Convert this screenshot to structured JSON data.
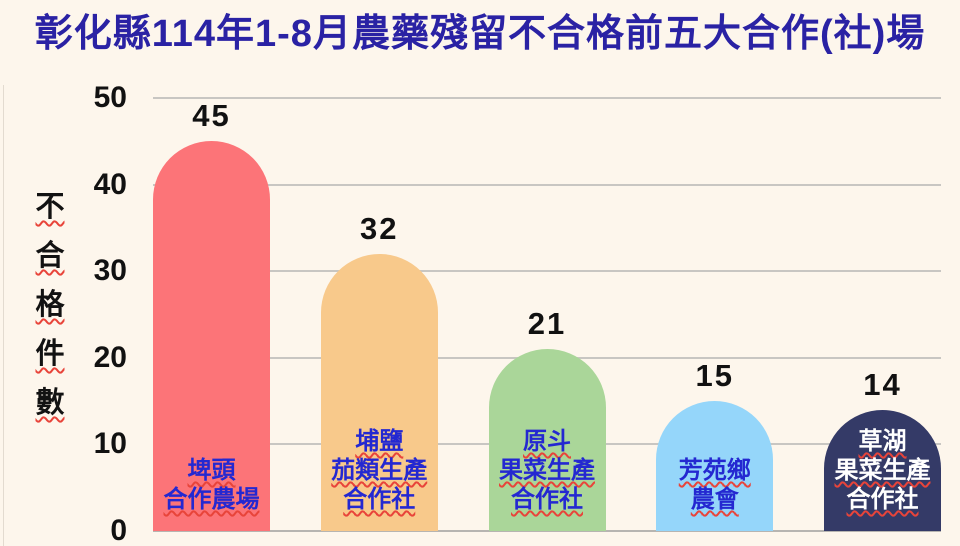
{
  "page": {
    "background_color": "#fdf6ec"
  },
  "chart_data": {
    "type": "bar",
    "title": "彰化縣114年1-8月農藥殘留不合格前五大合作(社)場",
    "title_color": "#2a22a4",
    "ylabel": "不合格件數",
    "xlabel": "",
    "categories": [
      "埤頭合作農場",
      "埔鹽茄類生產合作社",
      "原斗果菜生產合作社",
      "芳苑鄉農會",
      "草湖果菜生產合作社"
    ],
    "values": [
      45,
      32,
      21,
      15,
      14
    ],
    "ylim": [
      0,
      50
    ],
    "yticks": [
      0,
      10,
      20,
      30,
      40,
      50
    ],
    "grid": true,
    "legend": "none",
    "value_label_color": "#111111",
    "tick_label_color": "#111111",
    "gridline_color": "#c8c6c2",
    "label_underline": {
      "style": "wavy",
      "color": "#e8443a"
    },
    "bars": [
      {
        "value": 45,
        "color": "#fc7478",
        "label_lines": [
          "埤頭",
          "合作農場"
        ],
        "label_color": "#2428d1"
      },
      {
        "value": 32,
        "color": "#f8c98b",
        "label_lines": [
          "埔鹽",
          "茄類生產",
          "合作社"
        ],
        "label_color": "#2428d1"
      },
      {
        "value": 21,
        "color": "#aad699",
        "label_lines": [
          "原斗",
          "果菜生產",
          "合作社"
        ],
        "label_color": "#2428d1"
      },
      {
        "value": 15,
        "color": "#95d6fa",
        "label_lines": [
          "芳苑鄉",
          "農會"
        ],
        "label_color": "#2428d1"
      },
      {
        "value": 14,
        "color": "#343a67",
        "label_lines": [
          "草湖",
          "果菜生產",
          "合作社"
        ],
        "label_color": "#ffffff"
      }
    ]
  }
}
